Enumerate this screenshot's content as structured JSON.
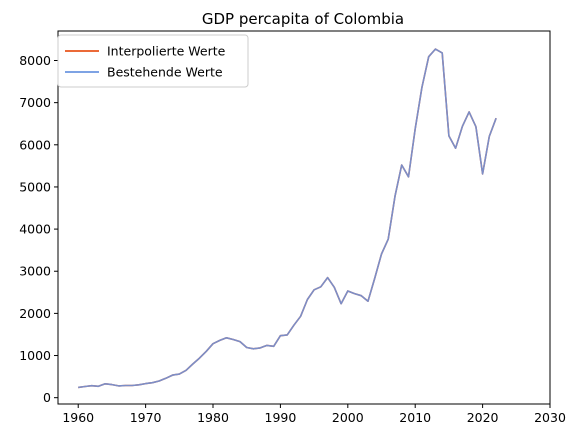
{
  "chart_data": {
    "type": "line",
    "title": "GDP percapita of Colombia",
    "xlabel": "",
    "ylabel": "",
    "xlim": [
      1957,
      2030
    ],
    "ylim": [
      -150,
      8700
    ],
    "xticks": [
      1960,
      1970,
      1980,
      1990,
      2000,
      2010,
      2020,
      2030
    ],
    "yticks": [
      0,
      1000,
      2000,
      3000,
      4000,
      5000,
      6000,
      7000,
      8000
    ],
    "legend_position": "top-left",
    "grid": false,
    "series": [
      {
        "name": "Interpolierte Werte",
        "color": "#e8541c",
        "x": [
          1960,
          1961,
          1962,
          1963,
          1964,
          1965,
          1966,
          1967,
          1968,
          1969,
          1970,
          1971,
          1972,
          1973,
          1974,
          1975,
          1976,
          1977,
          1978,
          1979,
          1980,
          1981,
          1982,
          1983,
          1984,
          1985,
          1986,
          1987,
          1988,
          1989,
          1990,
          1991,
          1992,
          1993,
          1994,
          1995,
          1996,
          1997,
          1998,
          1999,
          2000,
          2001,
          2002,
          2003,
          2004,
          2005,
          2006,
          2007,
          2008,
          2009,
          2010,
          2011,
          2012,
          2013,
          2014,
          2015,
          2016,
          2017,
          2018,
          2019,
          2020,
          2021,
          2022
        ],
        "y": [
          245,
          265,
          285,
          270,
          330,
          310,
          280,
          290,
          290,
          305,
          335,
          355,
          395,
          460,
          535,
          560,
          650,
          800,
          940,
          1100,
          1280,
          1360,
          1420,
          1380,
          1330,
          1190,
          1160,
          1180,
          1240,
          1220,
          1470,
          1490,
          1720,
          1930,
          2330,
          2560,
          2630,
          2850,
          2620,
          2230,
          2530,
          2470,
          2420,
          2290,
          2840,
          3410,
          3760,
          4780,
          5520,
          5240,
          6380,
          7360,
          8090,
          8270,
          8180,
          6210,
          5920,
          6440,
          6780,
          6430,
          5310,
          6200,
          6630
        ]
      },
      {
        "name": "Bestehende Werte",
        "color": "#6b96e0",
        "x": [
          1960,
          1961,
          1962,
          1963,
          1964,
          1965,
          1966,
          1967,
          1968,
          1969,
          1970,
          1971,
          1972,
          1973,
          1974,
          1975,
          1976,
          1977,
          1978,
          1979,
          1980,
          1981,
          1982,
          1983,
          1984,
          1985,
          1986,
          1987,
          1988,
          1989,
          1990,
          1991,
          1992,
          1993,
          1994,
          1995,
          1996,
          1997,
          1998,
          1999,
          2000,
          2001,
          2002,
          2003,
          2004,
          2005,
          2006,
          2007,
          2008,
          2009,
          2010,
          2011,
          2012,
          2013,
          2014,
          2015,
          2016,
          2017,
          2018,
          2019,
          2020,
          2021,
          2022
        ],
        "y": [
          245,
          265,
          285,
          270,
          330,
          310,
          280,
          290,
          290,
          305,
          335,
          355,
          395,
          460,
          535,
          560,
          650,
          800,
          940,
          1100,
          1280,
          1360,
          1420,
          1380,
          1330,
          1190,
          1160,
          1180,
          1240,
          1220,
          1470,
          1490,
          1720,
          1930,
          2330,
          2560,
          2630,
          2850,
          2620,
          2230,
          2530,
          2470,
          2420,
          2290,
          2840,
          3410,
          3760,
          4780,
          5520,
          5240,
          6380,
          7360,
          8090,
          8270,
          8180,
          6210,
          5920,
          6440,
          6780,
          6430,
          5310,
          6200,
          6630
        ]
      }
    ]
  }
}
